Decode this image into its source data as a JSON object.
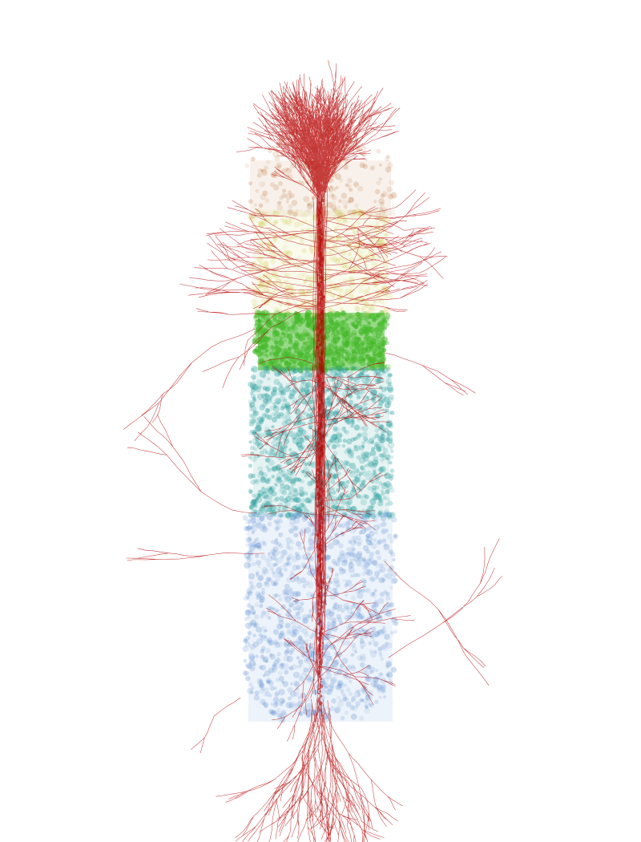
{
  "visualization": {
    "subject": "cortical-column-neuron-reconstruction",
    "background_color": "#ffffff",
    "layers": [
      {
        "id": "layer-1",
        "color": "#c98a5a"
      },
      {
        "id": "layer-2-3",
        "color": "#d8d36a"
      },
      {
        "id": "layer-4",
        "color": "#45b92a"
      },
      {
        "id": "layer-5",
        "color": "#2fa0a0"
      },
      {
        "id": "layer-6",
        "color": "#6f9bd8"
      }
    ],
    "morphology_color": "#b40000"
  }
}
